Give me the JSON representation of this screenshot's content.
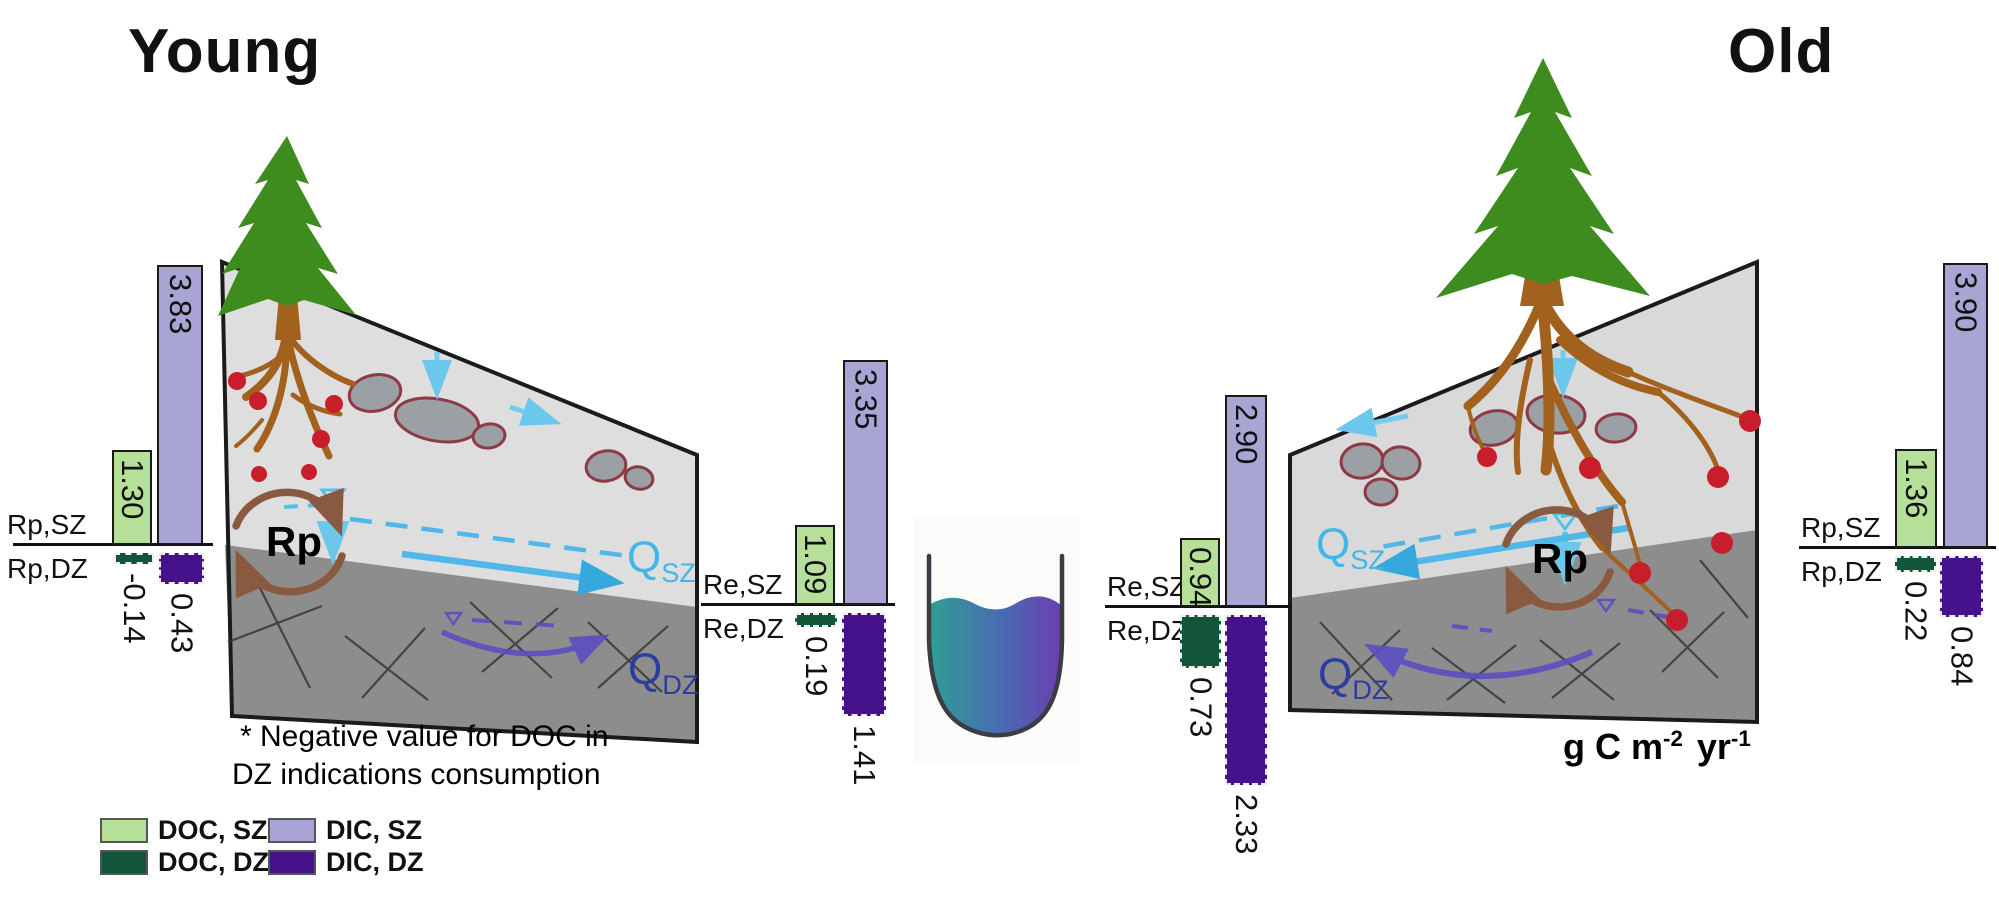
{
  "titles": {
    "young": "Young",
    "old": "Old"
  },
  "annotation": {
    "line1": "* Negative value for DOC in",
    "line2": "DZ indications consumption"
  },
  "units_label": {
    "base1": "g C m",
    "sup1": "-2",
    "base2": "yr",
    "sup2": "-1"
  },
  "diagram_labels": {
    "rp": "Rp",
    "q": "Q",
    "sz": "SZ",
    "dz": "DZ"
  },
  "legend": {
    "doc_sz": {
      "label": "DOC, SZ",
      "color": "#b6df9a"
    },
    "dic_sz": {
      "label": "DIC, SZ",
      "color": "#a8a4d4"
    },
    "doc_dz": {
      "label": "DOC, DZ",
      "color": "#125538"
    },
    "dic_dz": {
      "label": "DIC, DZ",
      "color": "#45128c"
    }
  },
  "colors": {
    "doc_sz": "#b6df9a",
    "dic_sz": "#a8a4d4",
    "doc_dz": "#125538",
    "dic_dz": "#45128c",
    "qsz_arrow": "#4fb8e8",
    "qsz_label": "#41b6ea",
    "qdz_arrow": "#5a4ec2",
    "qdz_label": "#2c3d9e",
    "rp_cycle": "#8a5a40",
    "tree_green": "#3f8c1e",
    "root_brown": "#a2611c",
    "sz_zone": "#dedede",
    "dz_zone": "#8d8d8d",
    "doc_particle_red": "#c81e2b"
  },
  "chart_data": {
    "type": "bar",
    "units": "g C m-2 yr-1",
    "legend": [
      "DOC, SZ",
      "DIC, SZ",
      "DOC, DZ",
      "DIC, DZ"
    ],
    "legend_position": "bottom-left",
    "note": "* Negative value for DOC in DZ indications consumption",
    "charts": [
      {
        "hillslope": "Young",
        "group": "Rp",
        "label_top": "Rp,SZ",
        "label_bottom": "Rp,DZ",
        "bars": [
          {
            "series": "DOC, SZ",
            "value": 1.3,
            "display": "1.30"
          },
          {
            "series": "DIC, SZ",
            "value": 3.83,
            "display": "3.83"
          },
          {
            "series": "DOC, DZ",
            "value": -0.14,
            "display": "-0.14"
          },
          {
            "series": "DIC, DZ",
            "value": 0.43,
            "display": "0.43"
          }
        ]
      },
      {
        "hillslope": "Young",
        "group": "Re",
        "label_top": "Re,SZ",
        "label_bottom": "Re,DZ",
        "bars": [
          {
            "series": "DOC, SZ",
            "value": 1.09,
            "display": "1.09"
          },
          {
            "series": "DIC, SZ",
            "value": 3.35,
            "display": "3.35"
          },
          {
            "series": "DOC, DZ",
            "value": 0.19,
            "display": "0.19"
          },
          {
            "series": "DIC, DZ",
            "value": 1.41,
            "display": "1.41"
          }
        ]
      },
      {
        "hillslope": "Old",
        "group": "Re",
        "label_top": "Re,SZ",
        "label_bottom": "Re,DZ",
        "bars": [
          {
            "series": "DOC, SZ",
            "value": 0.94,
            "display": "0.94"
          },
          {
            "series": "DIC, SZ",
            "value": 2.9,
            "display": "2.90"
          },
          {
            "series": "DOC, DZ",
            "value": 0.73,
            "display": "0.73"
          },
          {
            "series": "DIC, DZ",
            "value": 2.33,
            "display": "2.33"
          }
        ]
      },
      {
        "hillslope": "Old",
        "group": "Rp",
        "label_top": "Rp,SZ",
        "label_bottom": "Rp,DZ",
        "bars": [
          {
            "series": "DOC, SZ",
            "value": 1.36,
            "display": "1.36"
          },
          {
            "series": "DIC, SZ",
            "value": 3.9,
            "display": "3.90"
          },
          {
            "series": "DOC, DZ",
            "value": 0.22,
            "display": "0.22"
          },
          {
            "series": "DIC, DZ",
            "value": 0.84,
            "display": "0.84"
          }
        ]
      }
    ]
  }
}
